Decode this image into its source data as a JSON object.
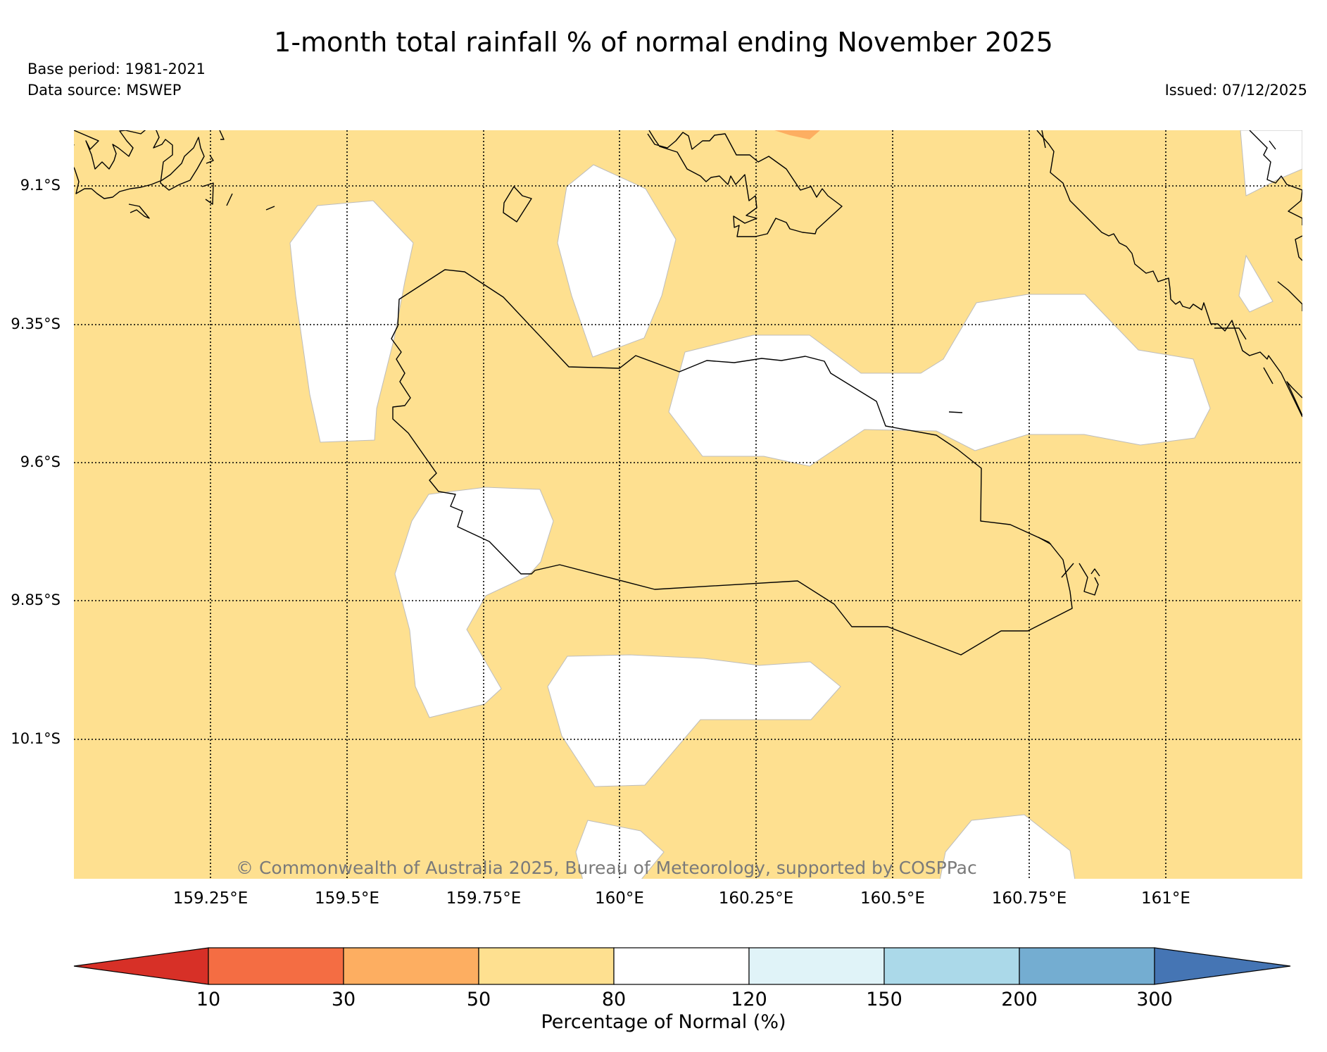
{
  "title": "1-month total rainfall % of normal ending November 2025",
  "base_period": "Base period: 1981-2021",
  "data_source": "Data source: MSWEP",
  "issued": "Issued: 07/12/2025",
  "copyright": "© Commonwealth of Australia 2025, Bureau of Meteorology, supported by COSPPac",
  "map": {
    "latitude_labels": [
      "9.1°S",
      "9.35°S",
      "9.6°S",
      "9.85°S",
      "10.1°S"
    ],
    "longitude_labels": [
      "159.25°E",
      "159.5°E",
      "159.75°E",
      "160°E",
      "160.25°E",
      "160.5°E",
      "160.75°E",
      "161°E"
    ],
    "background_category": "50-80",
    "colors": {
      "lt10": "#d73027",
      "10-30": "#f46d43",
      "30-50": "#fdae61",
      "50-80": "#fee090",
      "80-120": "#ffffff",
      "120-150": "#e0f3f8",
      "150-200": "#abd9e9",
      "200-300": "#74add1",
      "gt300": "#4575b4"
    }
  },
  "colorbar": {
    "label": "Percentage of Normal (%)",
    "ticks": [
      "10",
      "30",
      "50",
      "80",
      "120",
      "150",
      "200",
      "300"
    ],
    "bins": [
      "#d73027",
      "#f46d43",
      "#fdae61",
      "#fee090",
      "#ffffff",
      "#e0f3f8",
      "#abd9e9",
      "#74add1",
      "#4575b4"
    ]
  }
}
